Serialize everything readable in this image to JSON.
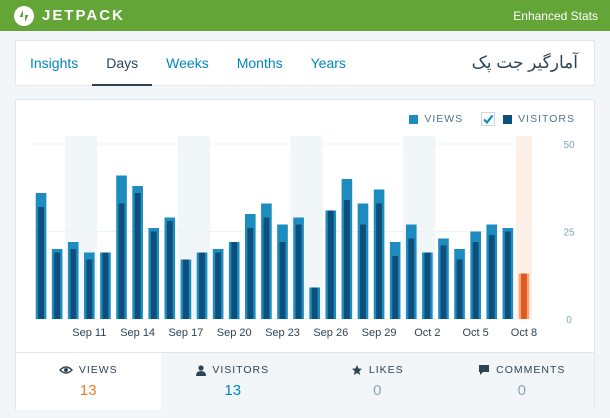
{
  "header": {
    "brand": "JETPACK",
    "link": "Enhanced Stats"
  },
  "tabs": [
    {
      "label": "Insights",
      "active": false
    },
    {
      "label": "Days",
      "active": true
    },
    {
      "label": "Weeks",
      "active": false
    },
    {
      "label": "Months",
      "active": false
    },
    {
      "label": "Years",
      "active": false
    }
  ],
  "site_title": "آمارگیر جت پک",
  "legend": {
    "views_label": "VIEWS",
    "visitors_label": "VISITORS",
    "visitors_checked": true
  },
  "colors": {
    "brand_green": "#64a537",
    "views": "#1e8cbe",
    "visitors": "#0e4e7b",
    "highlight_views": "#f6a77b",
    "highlight_visitors": "#e0591e",
    "accent_orange": "#f07c24",
    "link_blue": "#0087be"
  },
  "chart_data": {
    "type": "bar",
    "x": [
      "Sep 8",
      "Sep 9",
      "Sep 10",
      "Sep 11",
      "Sep 12",
      "Sep 13",
      "Sep 14",
      "Sep 15",
      "Sep 16",
      "Sep 17",
      "Sep 18",
      "Sep 19",
      "Sep 20",
      "Sep 21",
      "Sep 22",
      "Sep 23",
      "Sep 24",
      "Sep 25",
      "Sep 26",
      "Sep 27",
      "Sep 28",
      "Sep 29",
      "Sep 30",
      "Oct 1",
      "Oct 2",
      "Oct 3",
      "Oct 4",
      "Oct 5",
      "Oct 6",
      "Oct 7",
      "Oct 8"
    ],
    "tick_labels": [
      "Sep 11",
      "Sep 14",
      "Sep 17",
      "Sep 20",
      "Sep 23",
      "Sep 26",
      "Sep 29",
      "Oct 2",
      "Oct 5",
      "Oct 8"
    ],
    "series": [
      {
        "name": "VIEWS",
        "values": [
          36,
          20,
          22,
          19,
          19,
          41,
          38,
          26,
          29,
          17,
          19,
          20,
          22,
          30,
          33,
          27,
          29,
          9,
          31,
          40,
          33,
          37,
          22,
          27,
          19,
          23,
          20,
          25,
          27,
          26,
          13
        ]
      },
      {
        "name": "VISITORS",
        "values": [
          32,
          19,
          20,
          17,
          19,
          33,
          36,
          25,
          28,
          17,
          19,
          19,
          22,
          26,
          29,
          22,
          27,
          9,
          31,
          34,
          27,
          33,
          18,
          23,
          19,
          21,
          17,
          22,
          24,
          25,
          13
        ]
      }
    ],
    "ylim": [
      0,
      50
    ],
    "y_ticks": [
      0,
      25,
      50
    ],
    "weekend_shading": true,
    "highlighted_category": "Oct 8"
  },
  "stats": [
    {
      "label": "VIEWS",
      "value": "13",
      "icon": "eye-icon",
      "active": true,
      "value_color": "#f07c24"
    },
    {
      "label": "VISITORS",
      "value": "13",
      "icon": "person-icon",
      "active": false,
      "value_color": "#0087be"
    },
    {
      "label": "LIKES",
      "value": "0",
      "icon": "star-icon",
      "active": false,
      "value_color": "#87a6bc"
    },
    {
      "label": "COMMENTS",
      "value": "0",
      "icon": "comment-icon",
      "active": false,
      "value_color": "#87a6bc"
    }
  ]
}
